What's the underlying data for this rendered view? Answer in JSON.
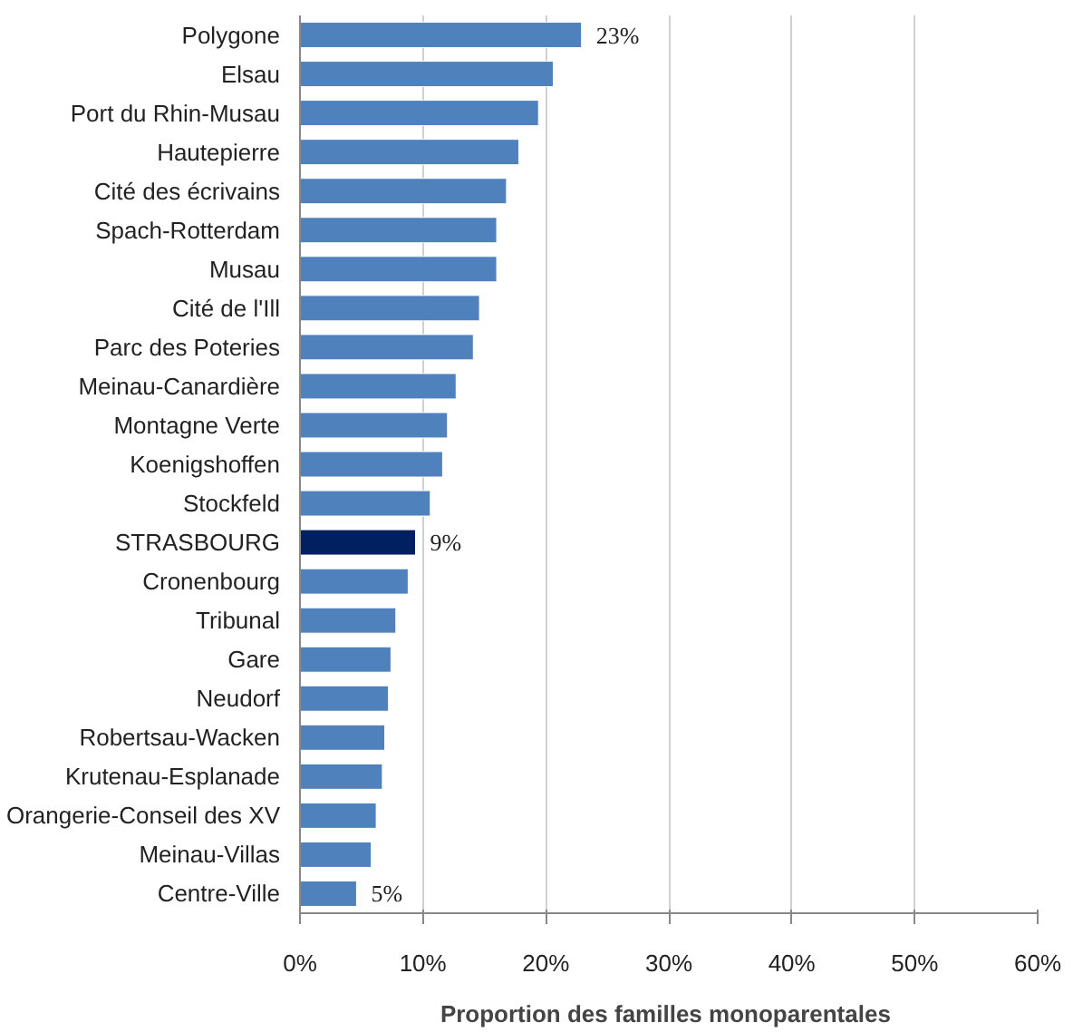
{
  "chart_data": {
    "type": "bar",
    "orientation": "horizontal",
    "xlabel": "Proportion des familles  monoparentales",
    "categories": [
      "Polygone",
      "Elsau",
      "Port du Rhin-Musau",
      "Hautepierre",
      "Cité des écrivains",
      "Spach-Rotterdam",
      "Musau",
      "Cité de l'Ill",
      "Parc des Poteries",
      "Meinau-Canardière",
      "Montagne Verte",
      "Koenigshoffen",
      "Stockfeld",
      "STRASBOURG",
      "Cronenbourg",
      "Tribunal",
      "Gare",
      "Neudorf",
      "Robertsau-Wacken",
      "Krutenau-Esplanade",
      "Orangerie-Conseil des XV",
      "Meinau-Villas",
      "Centre-Ville"
    ],
    "values": [
      22.9,
      20.6,
      19.4,
      17.8,
      16.8,
      16.0,
      16.0,
      14.6,
      14.1,
      12.7,
      12.0,
      11.6,
      10.6,
      9.4,
      8.8,
      7.8,
      7.4,
      7.2,
      6.9,
      6.7,
      6.2,
      5.8,
      4.6
    ],
    "colors": [
      "#4f81bd",
      "#4f81bd",
      "#4f81bd",
      "#4f81bd",
      "#4f81bd",
      "#4f81bd",
      "#4f81bd",
      "#4f81bd",
      "#4f81bd",
      "#4f81bd",
      "#4f81bd",
      "#4f81bd",
      "#4f81bd",
      "#002060",
      "#4f81bd",
      "#4f81bd",
      "#4f81bd",
      "#4f81bd",
      "#4f81bd",
      "#4f81bd",
      "#4f81bd",
      "#4f81bd",
      "#4f81bd"
    ],
    "value_labels": [
      "23%",
      null,
      null,
      null,
      null,
      null,
      null,
      null,
      null,
      null,
      null,
      null,
      null,
      "9%",
      null,
      null,
      null,
      null,
      null,
      null,
      null,
      null,
      "5%"
    ],
    "xlim": [
      0,
      60
    ],
    "xticks": [
      {
        "value": 0,
        "label": "0%"
      },
      {
        "value": 10,
        "label": "10%"
      },
      {
        "value": 20,
        "label": "20%"
      },
      {
        "value": 30,
        "label": "30%"
      },
      {
        "value": 40,
        "label": "40%"
      },
      {
        "value": 50,
        "label": "50%"
      },
      {
        "value": 60,
        "label": "60%"
      }
    ],
    "grid": "x"
  }
}
